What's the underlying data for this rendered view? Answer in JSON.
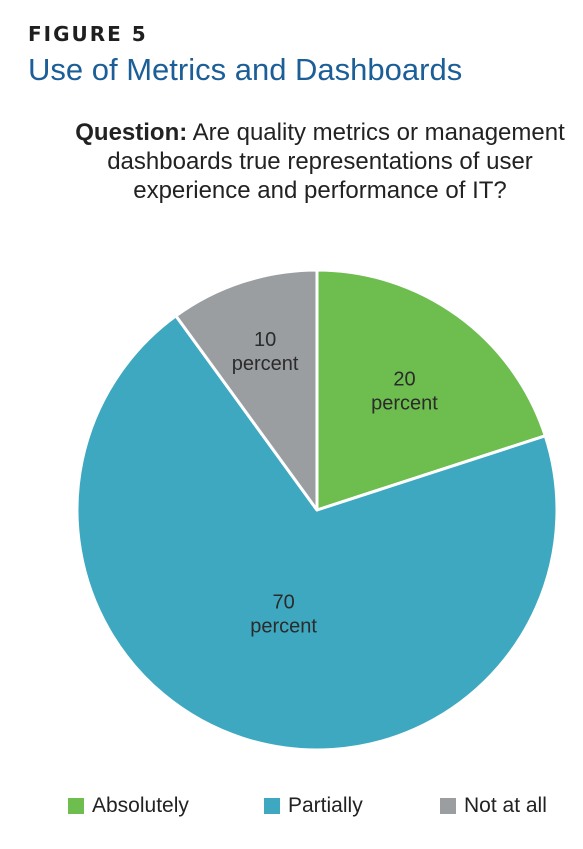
{
  "figure": {
    "label": "FIGURE 5",
    "title": "Use of Metrics and Dashboards",
    "question_prefix": "Question:",
    "question_text": " Are quality metrics or management dashboards true representations of user experience and performance of IT?"
  },
  "chart_data": {
    "type": "pie",
    "categories": [
      "Absolutely",
      "Partially",
      "Not at all"
    ],
    "values": [
      20,
      70,
      10
    ],
    "unit": "percent",
    "data_labels": [
      {
        "value": "20",
        "unit": "percent"
      },
      {
        "value": "70",
        "unit": "percent"
      },
      {
        "value": "10",
        "unit": "percent"
      }
    ],
    "colors": [
      "#6dbd4f",
      "#3ea8c0",
      "#9a9ea1"
    ],
    "start": "12 o'clock",
    "direction": "clockwise",
    "legend_position": "bottom"
  }
}
